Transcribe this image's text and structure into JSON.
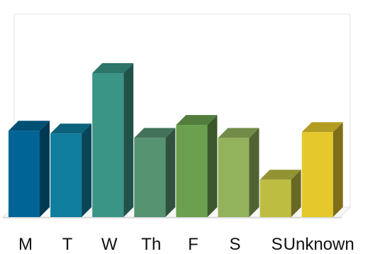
{
  "chart_data": {
    "type": "bar",
    "title": "…   ",
    "categories": [
      "M",
      "T",
      "W",
      "Th",
      "F",
      "S",
      "S",
      "Unknown"
    ],
    "values": [
      60,
      58,
      100,
      55,
      64,
      55,
      26,
      59
    ],
    "colors": [
      "#006596",
      "#0f7d9e",
      "#3a9587",
      "#559371",
      "#6aa04e",
      "#93b25c",
      "#bdbd42",
      "#e5c82b"
    ],
    "ylim": [
      0,
      100
    ],
    "xlabel": "",
    "ylabel": "",
    "grid": false
  }
}
